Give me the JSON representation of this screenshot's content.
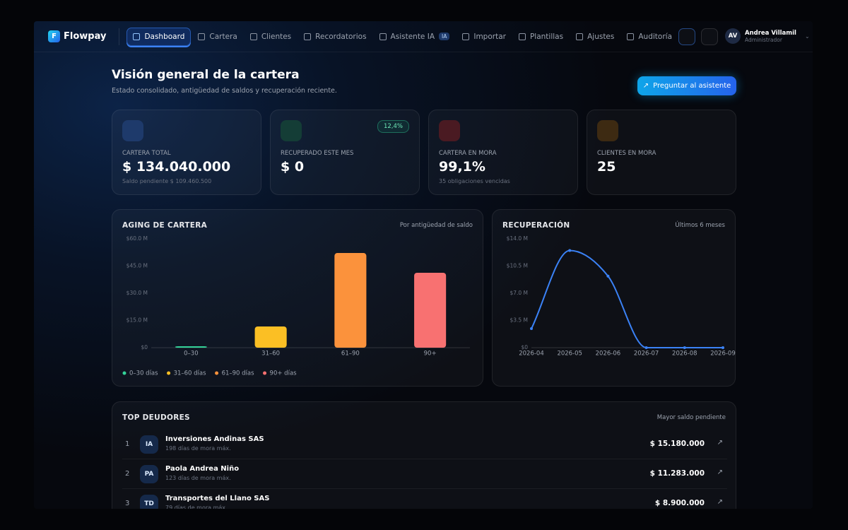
{
  "nav": {
    "brand": "Flowpay",
    "items": [
      "Dashboard",
      "Cartera",
      "Clientes",
      "Recordatorios",
      "Asistente IA",
      "Importar",
      "Plantillas",
      "Ajustes",
      "Auditoría"
    ],
    "badge": "IA",
    "user": {
      "initials": "AV",
      "name": "Andrea Villamil",
      "role": "Administrador"
    }
  },
  "header": {
    "title": "Visión general de la cartera",
    "subtitle": "Estado consolidado, antigüedad de saldos y recuperación reciente.",
    "button": "Preguntar al asistente"
  },
  "kpis": [
    {
      "label": "CARTERA TOTAL",
      "value": "$ 134.040.000",
      "note": "Saldo pendiente $ 109.460.500"
    },
    {
      "label": "RECUPERADO ESTE MES",
      "value": "$ 0",
      "badge": "12,4%"
    },
    {
      "label": "CARTERA EN MORA",
      "value": "99,1%",
      "note": "35 obligaciones vencidas"
    },
    {
      "label": "CLIENTES EN MORA",
      "value": "25"
    }
  ],
  "chart_data": [
    {
      "type": "bar",
      "title": "AGING DE CARTERA",
      "subtitle": "Por antigüedad de saldo",
      "categories": [
        "0–30",
        "31–60",
        "61–90",
        "90+"
      ],
      "values": [
        0.8,
        11.7,
        52.2,
        41.3
      ],
      "colors": [
        "#34d399",
        "#fbbf24",
        "#fb923c",
        "#f87171"
      ],
      "legend": [
        "0–30 días",
        "31–60 días",
        "61–90 días",
        "90+ días"
      ],
      "ylim": [
        0,
        60
      ],
      "yticks": [
        {
          "value": 0,
          "label": "$0"
        },
        {
          "value": 15,
          "label": "$15.0 M"
        },
        {
          "value": 30,
          "label": "$30.0 M"
        },
        {
          "value": 45,
          "label": "$45.0 M"
        },
        {
          "value": 60,
          "label": "$60.0 M"
        }
      ]
    },
    {
      "type": "line",
      "title": "RECUPERACIÓN",
      "subtitle": "Últimos 6 meses",
      "categories": [
        "2026-04",
        "2026-05",
        "2026-06",
        "2026-07",
        "2026-08",
        "2026-09"
      ],
      "values": [
        2.45,
        12.5,
        9.2,
        0,
        0,
        0
      ],
      "color": "#3b82f6",
      "ylim": [
        0,
        14
      ],
      "yticks": [
        {
          "value": 0,
          "label": "$0"
        },
        {
          "value": 3.5,
          "label": "$3.5 M"
        },
        {
          "value": 7,
          "label": "$7.0 M"
        },
        {
          "value": 10.5,
          "label": "$10.5 M"
        },
        {
          "value": 14,
          "label": "$14.0 M"
        }
      ]
    }
  ],
  "debtors": {
    "title": "TOP DEUDORES",
    "subtitle": "Mayor saldo pendiente",
    "rows": [
      {
        "rank": 1,
        "initials": "IA",
        "name": "Inversiones Andinas SAS",
        "detail": "198 días de mora máx.",
        "amount": "$ 15.180.000"
      },
      {
        "rank": 2,
        "initials": "PA",
        "name": "Paola Andrea Niño",
        "detail": "123 días de mora máx.",
        "amount": "$ 11.283.000"
      },
      {
        "rank": 3,
        "initials": "TD",
        "name": "Transportes del Llano SAS",
        "detail": "79 días de mora máx.",
        "amount": "$ 8.900.000"
      }
    ]
  }
}
